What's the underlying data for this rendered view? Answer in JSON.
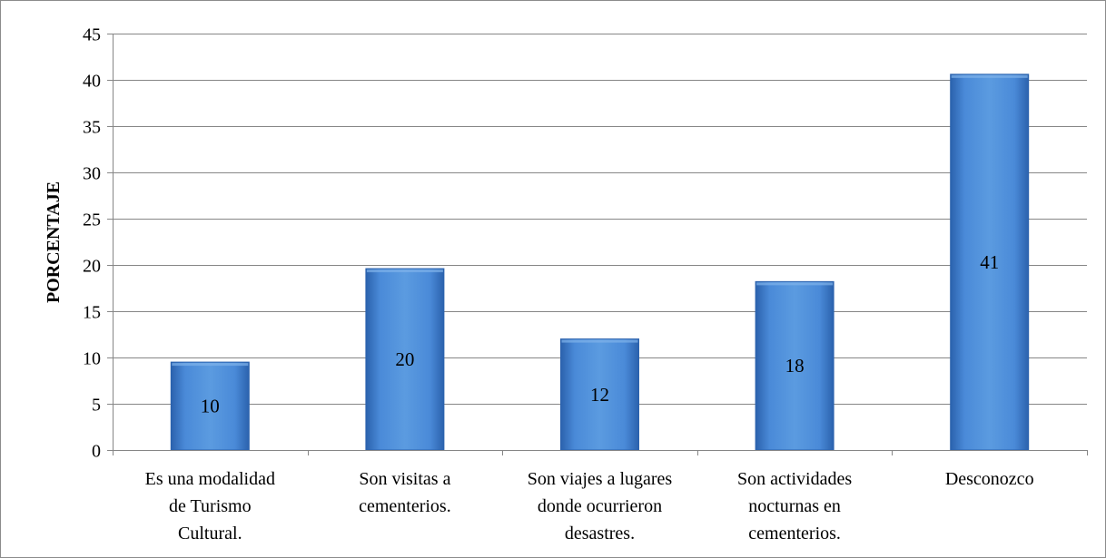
{
  "chart_data": {
    "type": "bar",
    "title": "",
    "xlabel": "",
    "ylabel": "PORCENTAJE",
    "ylim": [
      0,
      45
    ],
    "ytick_step": 5,
    "grid": true,
    "legend": "none",
    "categories": [
      [
        "Es una modalidad",
        "de Turismo",
        "Cultural."
      ],
      [
        "Son visitas a",
        "cementerios."
      ],
      [
        "Son viajes a lugares",
        "donde ocurrieron",
        "desastres."
      ],
      [
        "Son actividades",
        "nocturnas en",
        "cementerios."
      ],
      [
        "Desconozco"
      ]
    ],
    "values": [
      9.5,
      19.6,
      12.0,
      18.2,
      40.6
    ],
    "data_labels": [
      "10",
      "20",
      "12",
      "18",
      "41"
    ],
    "colors": {
      "bar_light": "#5b9be0",
      "bar_mid": "#3b7bcc",
      "bar_dark": "#2b62ad",
      "grid": "#868686",
      "frame": "#8c8c8c"
    }
  }
}
